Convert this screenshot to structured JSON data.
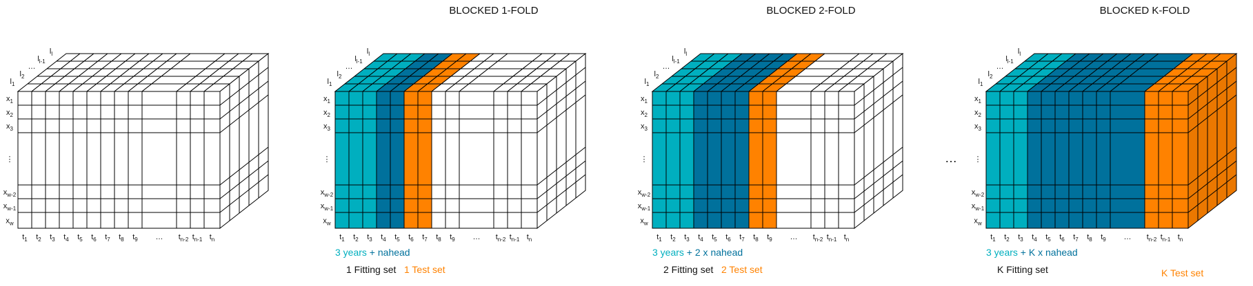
{
  "colors": {
    "fitting_light": "#00AFBF",
    "fitting_dark": "#00719C",
    "test": "#FF8200",
    "line": "#000000",
    "plain": "#FFFFFF"
  },
  "cube_labels": {
    "rows": [
      {
        "base": "x",
        "sub": "1"
      },
      {
        "base": "x",
        "sub": "2"
      },
      {
        "base": "x",
        "sub": "3"
      },
      {
        "base": "⋮",
        "sub": ""
      },
      {
        "base": "x",
        "sub": "w-2"
      },
      {
        "base": "x",
        "sub": "w-1"
      },
      {
        "base": "x",
        "sub": "w"
      }
    ],
    "cols": [
      {
        "base": "t",
        "sub": "1"
      },
      {
        "base": "t",
        "sub": "2"
      },
      {
        "base": "t",
        "sub": "3"
      },
      {
        "base": "t",
        "sub": "4"
      },
      {
        "base": "t",
        "sub": "5"
      },
      {
        "base": "t",
        "sub": "6"
      },
      {
        "base": "t",
        "sub": "7"
      },
      {
        "base": "t",
        "sub": "8"
      },
      {
        "base": "t",
        "sub": "9"
      },
      {
        "base": "…",
        "sub": ""
      },
      {
        "base": "t",
        "sub": "n-2"
      },
      {
        "base": "t",
        "sub": "n-1"
      },
      {
        "base": "t",
        "sub": "n"
      }
    ],
    "depth": [
      {
        "base": "l",
        "sub": "1"
      },
      {
        "base": "l",
        "sub": "2"
      },
      {
        "base": "…",
        "sub": ""
      },
      {
        "base": "l",
        "sub": "l-1"
      },
      {
        "base": "l",
        "sub": "l"
      }
    ]
  },
  "panels": [
    {
      "title": "",
      "col_colors": [
        "W",
        "W",
        "W",
        "W",
        "W",
        "W",
        "W",
        "W",
        "W",
        "W",
        "W",
        "W",
        "W"
      ],
      "window_text": "",
      "window_suffix": "",
      "fitting_label": "",
      "test_label": ""
    },
    {
      "title": "BLOCKED 1-FOLD",
      "col_colors": [
        "L",
        "L",
        "L",
        "D",
        "D",
        "O",
        "O",
        "W",
        "W",
        "W",
        "W",
        "W",
        "W"
      ],
      "window_text": "3 years",
      "window_suffix": " + nahead",
      "fitting_label": "1 Fitting set",
      "test_label": "1 Test set"
    },
    {
      "title": "BLOCKED 2-FOLD",
      "col_colors": [
        "L",
        "L",
        "L",
        "D",
        "D",
        "D",
        "D",
        "O",
        "O",
        "W",
        "W",
        "W",
        "W"
      ],
      "window_text": "3 years",
      "window_suffix": " + 2 x nahead",
      "fitting_label": "2 Fitting set",
      "test_label": "2 Test set"
    },
    {
      "title": "BLOCKED K-FOLD",
      "col_colors": [
        "L",
        "L",
        "L",
        "D",
        "D",
        "D",
        "D",
        "D",
        "D",
        "D",
        "O",
        "O",
        "O"
      ],
      "window_text": "3 years",
      "window_suffix": " + K x nahead",
      "fitting_label": "K Fitting set",
      "test_label": "K Test set"
    }
  ],
  "separator": "…"
}
